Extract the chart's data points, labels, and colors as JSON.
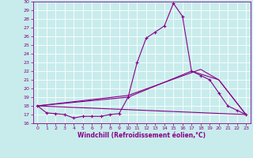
{
  "xlabel": "Windchill (Refroidissement éolien,°C)",
  "bg_color": "#c8ecec",
  "grid_color": "#ffffff",
  "line_color": "#880088",
  "xlim": [
    -0.5,
    23.5
  ],
  "ylim": [
    16,
    30
  ],
  "yticks": [
    16,
    17,
    18,
    19,
    20,
    21,
    22,
    23,
    24,
    25,
    26,
    27,
    28,
    29,
    30
  ],
  "xticks": [
    0,
    1,
    2,
    3,
    4,
    5,
    6,
    7,
    8,
    9,
    10,
    11,
    12,
    13,
    14,
    15,
    16,
    17,
    18,
    19,
    20,
    21,
    22,
    23
  ],
  "series1_x": [
    0,
    1,
    2,
    3,
    4,
    5,
    6,
    7,
    8,
    9,
    10,
    11,
    12,
    13,
    14,
    15,
    16,
    17,
    18,
    19,
    20,
    21,
    22,
    23
  ],
  "series1_y": [
    18,
    17.2,
    17.1,
    17.0,
    16.6,
    16.8,
    16.8,
    16.8,
    17.0,
    17.1,
    19.0,
    23.0,
    25.8,
    26.5,
    27.2,
    29.8,
    28.3,
    22.0,
    21.5,
    21.0,
    19.5,
    18.0,
    17.5,
    17.0
  ],
  "series2_x": [
    0,
    23
  ],
  "series2_y": [
    18.0,
    17.0
  ],
  "series3_x": [
    0,
    10,
    17,
    20,
    23
  ],
  "series3_y": [
    18.0,
    19.0,
    22.0,
    21.0,
    17.0
  ],
  "series4_x": [
    0,
    10,
    18,
    20,
    23
  ],
  "series4_y": [
    18.0,
    19.2,
    22.2,
    21.0,
    17.0
  ]
}
